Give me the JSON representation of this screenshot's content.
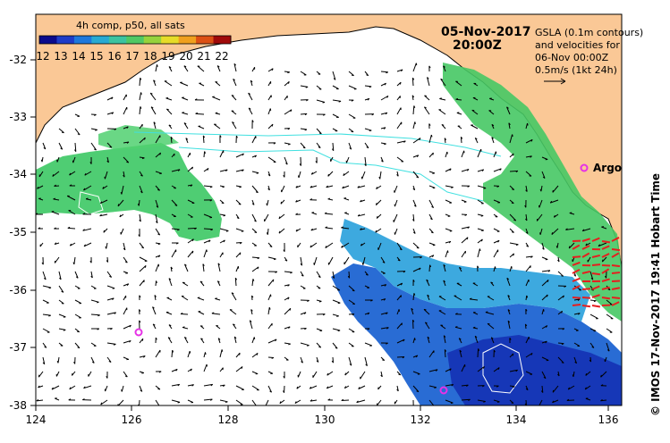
{
  "colorbar": {
    "title": "4h comp, p50, all sats",
    "ticks": [
      "12",
      "13",
      "14",
      "15",
      "16",
      "17",
      "18",
      "19",
      "20",
      "21",
      "22"
    ],
    "colors": [
      "#0a0a8c",
      "#1e3cc8",
      "#1e78dc",
      "#28aad2",
      "#3cc3a0",
      "#50c864",
      "#96d23c",
      "#e6dc28",
      "#f0a01e",
      "#dc5014",
      "#a00a0a"
    ]
  },
  "date_line1": "05-Nov-2017",
  "date_line2": "20:00Z",
  "legend": {
    "line1": "GSLA (0.1m contours)",
    "line2": "and velocities for",
    "line3": "06-Nov 00:00Z",
    "line4": "0.5m/s (1kt 24h)"
  },
  "argo_label": "Argo",
  "side_label": "© IMOS 17-Nov-2017 19:41 Hobart Time",
  "axes": {
    "x_ticks": [
      "124",
      "126",
      "128",
      "130",
      "132",
      "134",
      "136"
    ],
    "y_ticks": [
      "-32",
      "-33",
      "-34",
      "-35",
      "-36",
      "-37",
      "-38"
    ]
  },
  "colors": {
    "land": "#fac896",
    "arrow": "#000000",
    "argo": "#e632e6",
    "argo_arrows": "#e61e1e",
    "contour": "#40e0e0"
  }
}
